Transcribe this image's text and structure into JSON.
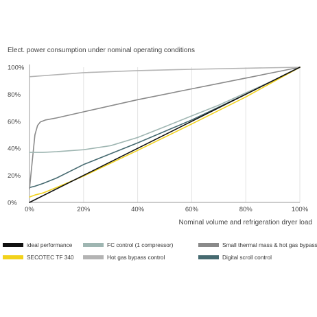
{
  "chart_data": {
    "type": "line",
    "title": "Elect. power consumption under nominal operating conditions",
    "xlabel": "Nominal volume and refrigeration dryer load",
    "ylabel": "",
    "xlim": [
      0,
      100
    ],
    "ylim": [
      0,
      100
    ],
    "x_ticks": [
      "0%",
      "20%",
      "40%",
      "60%",
      "80%",
      "100%"
    ],
    "y_ticks": [
      "0%",
      "20%",
      "40%",
      "60%",
      "80%",
      "100%"
    ],
    "grid": "vertical",
    "legend_position": "bottom",
    "series": [
      {
        "name": "ideal performance",
        "color": "#111111",
        "x": [
          0,
          100
        ],
        "y": [
          0,
          100
        ]
      },
      {
        "name": "SECOTEC TF 340",
        "color": "#f2d21b",
        "x": [
          0,
          2,
          5,
          10,
          20,
          40,
          60,
          80,
          100
        ],
        "y": [
          4,
          5.5,
          7,
          11,
          19.5,
          38.5,
          58,
          78,
          100
        ]
      },
      {
        "name": "FC control (1 compressor)",
        "color": "#9fb6b2",
        "x": [
          0,
          5,
          10,
          20,
          30,
          40,
          50,
          60,
          70,
          80,
          90,
          100
        ],
        "y": [
          37,
          37,
          37.5,
          39,
          42,
          48,
          56,
          64,
          72,
          81,
          90,
          100
        ]
      },
      {
        "name": "Hot gas bypass control",
        "color": "#b4b4b4",
        "x": [
          0,
          20,
          40,
          60,
          80,
          100
        ],
        "y": [
          93,
          96,
          97.5,
          98.5,
          99.3,
          100
        ]
      },
      {
        "name": "Small thermal mass & hot gas bypass",
        "color": "#8a8a8a",
        "x": [
          0,
          1,
          2,
          3,
          4,
          6,
          10,
          20,
          40,
          60,
          80,
          100
        ],
        "y": [
          10,
          30,
          50,
          57,
          59.5,
          61,
          62.5,
          67,
          76,
          84,
          92,
          100
        ]
      },
      {
        "name": "Digital scroll control",
        "color": "#466a70",
        "x": [
          0,
          2,
          5,
          10,
          20,
          40,
          60,
          80,
          100
        ],
        "y": [
          11,
          12,
          14,
          18,
          28,
          44,
          61,
          80,
          100
        ]
      }
    ]
  }
}
